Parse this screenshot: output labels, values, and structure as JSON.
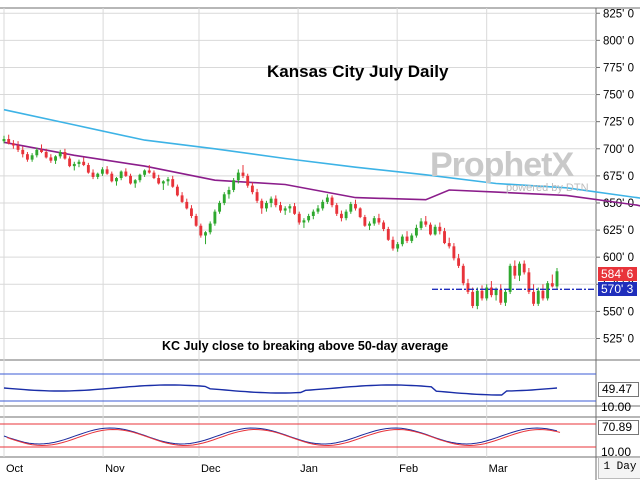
{
  "chart_data": {
    "type": "candlestick",
    "title": "Kansas City July Daily",
    "annotation": "KC July close to breaking above 50-day average",
    "y_ticks": [
      "825' 0",
      "800' 0",
      "775' 0",
      "750' 0",
      "725' 0",
      "700' 0",
      "675' 0",
      "650' 0",
      "625' 0",
      "600' 0",
      "575' 0",
      "550' 0",
      "525' 0"
    ],
    "y_tick_values": [
      825,
      800,
      775,
      750,
      725,
      700,
      675,
      650,
      625,
      600,
      575,
      550,
      525
    ],
    "ylim": [
      507,
      828
    ],
    "x_tick_labels": [
      "Oct",
      "Nov",
      "Dec",
      "Jan",
      "Feb",
      "Mar"
    ],
    "x_tick_dates": [
      "2020-10-01",
      "2020-11-01",
      "2020-12-01",
      "2021-01-01",
      "2021-02-01",
      "2021-03-01"
    ],
    "date_range": [
      "2020-10-01",
      "2021-03-23"
    ],
    "price_labels": [
      {
        "label": "584' 6",
        "value": 584.75,
        "color": "#e8333a"
      },
      {
        "label": "570' 3",
        "value": 570.375,
        "color": "#1f2ebc"
      }
    ],
    "reference_line": {
      "value": 570.375,
      "color": "#1f2ebc",
      "style": "dash-dot"
    },
    "series": [
      {
        "name": "50-day moving average",
        "color": "#3db3e6",
        "values": [
          [
            1,
            736
          ],
          [
            16,
            722
          ],
          [
            31,
            708
          ],
          [
            46,
            700
          ],
          [
            61,
            691
          ],
          [
            76,
            683
          ],
          [
            91,
            676
          ],
          [
            106,
            668
          ],
          [
            121,
            664
          ],
          [
            136,
            655
          ],
          [
            151,
            646
          ],
          [
            166,
            636
          ],
          [
            181,
            626
          ],
          [
            196,
            618
          ],
          [
            206,
            614
          ],
          [
            216,
            600
          ],
          [
            226,
            588
          ],
          [
            236,
            586
          ],
          [
            246,
            584
          ]
        ]
      },
      {
        "name": "20-day moving average",
        "color": "#8b1d8b",
        "values": [
          [
            1,
            706
          ],
          [
            16,
            694
          ],
          [
            31,
            684
          ],
          [
            46,
            671
          ],
          [
            61,
            667
          ],
          [
            76,
            655
          ],
          [
            91,
            653
          ],
          [
            96,
            662
          ],
          [
            106,
            660
          ],
          [
            121,
            657
          ],
          [
            136,
            648
          ],
          [
            151,
            634
          ],
          [
            166,
            630
          ],
          [
            181,
            622
          ],
          [
            196,
            606
          ],
          [
            206,
            591
          ],
          [
            216,
            572
          ],
          [
            226,
            565
          ],
          [
            236,
            568
          ],
          [
            246,
            572
          ]
        ]
      }
    ],
    "candles_ohlc": [
      [
        1,
        707,
        712,
        705,
        709
      ],
      [
        2,
        709,
        713,
        704,
        705
      ],
      [
        3,
        705,
        708,
        700,
        703
      ],
      [
        4,
        703,
        707,
        697,
        699
      ],
      [
        5,
        699,
        702,
        692,
        695
      ],
      [
        6,
        695,
        697,
        688,
        690
      ],
      [
        7,
        690,
        696,
        688,
        694
      ],
      [
        8,
        694,
        701,
        692,
        699
      ],
      [
        9,
        699,
        704,
        696,
        697
      ],
      [
        10,
        697,
        700,
        691,
        692
      ],
      [
        11,
        692,
        695,
        687,
        689
      ],
      [
        12,
        689,
        694,
        686,
        693
      ],
      [
        13,
        693,
        699,
        691,
        697
      ],
      [
        14,
        697,
        700,
        690,
        691
      ],
      [
        15,
        691,
        693,
        683,
        684
      ],
      [
        16,
        684,
        688,
        680,
        686
      ],
      [
        17,
        686,
        690,
        683,
        688
      ],
      [
        18,
        688,
        692,
        684,
        685
      ],
      [
        19,
        685,
        687,
        677,
        678
      ],
      [
        20,
        678,
        681,
        672,
        674
      ],
      [
        21,
        674,
        678,
        672,
        677
      ],
      [
        22,
        677,
        683,
        675,
        681
      ],
      [
        23,
        681,
        684,
        676,
        677
      ],
      [
        24,
        677,
        679,
        669,
        670
      ],
      [
        25,
        670,
        674,
        666,
        673
      ],
      [
        26,
        673,
        680,
        671,
        679
      ],
      [
        27,
        679,
        682,
        674,
        675
      ],
      [
        28,
        675,
        677,
        667,
        668
      ],
      [
        29,
        668,
        672,
        664,
        671
      ],
      [
        30,
        671,
        677,
        669,
        676
      ],
      [
        31,
        676,
        681,
        674,
        680
      ],
      [
        32,
        680,
        685,
        677,
        678
      ],
      [
        33,
        678,
        680,
        672,
        673
      ],
      [
        34,
        673,
        676,
        667,
        668
      ],
      [
        35,
        668,
        671,
        662,
        670
      ],
      [
        36,
        670,
        674,
        666,
        672
      ],
      [
        37,
        672,
        675,
        664,
        665
      ],
      [
        38,
        665,
        667,
        656,
        657
      ],
      [
        39,
        657,
        660,
        650,
        651
      ],
      [
        40,
        651,
        654,
        644,
        645
      ],
      [
        41,
        645,
        648,
        636,
        638
      ],
      [
        42,
        638,
        640,
        628,
        629
      ],
      [
        43,
        629,
        631,
        618,
        620
      ],
      [
        44,
        620,
        624,
        612,
        623
      ],
      [
        45,
        623,
        633,
        621,
        631
      ],
      [
        46,
        631,
        644,
        629,
        642
      ],
      [
        47,
        642,
        652,
        640,
        650
      ],
      [
        48,
        650,
        660,
        648,
        658
      ],
      [
        49,
        658,
        665,
        654,
        662
      ],
      [
        50,
        662,
        673,
        660,
        671
      ],
      [
        51,
        671,
        681,
        668,
        678
      ],
      [
        52,
        678,
        685,
        673,
        675
      ],
      [
        53,
        675,
        677,
        664,
        666
      ],
      [
        54,
        666,
        669,
        658,
        660
      ],
      [
        55,
        660,
        663,
        650,
        652
      ],
      [
        56,
        652,
        654,
        640,
        645
      ],
      [
        57,
        645,
        652,
        642,
        650
      ],
      [
        58,
        650,
        656,
        646,
        654
      ],
      [
        59,
        654,
        657,
        646,
        648
      ],
      [
        60,
        648,
        651,
        641,
        643
      ],
      [
        61,
        643,
        647,
        639,
        645
      ],
      [
        62,
        645,
        649,
        641,
        647
      ],
      [
        63,
        647,
        650,
        639,
        640
      ],
      [
        64,
        640,
        642,
        630,
        632
      ],
      [
        65,
        632,
        636,
        627,
        634
      ],
      [
        66,
        634,
        640,
        632,
        638
      ],
      [
        67,
        638,
        644,
        635,
        642
      ],
      [
        68,
        642,
        648,
        640,
        645
      ],
      [
        69,
        645,
        653,
        643,
        651
      ],
      [
        70,
        651,
        658,
        649,
        655
      ],
      [
        71,
        655,
        657,
        646,
        648
      ],
      [
        72,
        648,
        650,
        638,
        640
      ],
      [
        73,
        640,
        643,
        633,
        636
      ],
      [
        74,
        636,
        644,
        634,
        642
      ],
      [
        75,
        642,
        651,
        640,
        649
      ],
      [
        76,
        649,
        653,
        643,
        645
      ],
      [
        77,
        645,
        646,
        636,
        637
      ],
      [
        78,
        637,
        639,
        628,
        629
      ],
      [
        79,
        629,
        633,
        625,
        631
      ],
      [
        80,
        631,
        638,
        629,
        636
      ],
      [
        81,
        636,
        640,
        630,
        632
      ],
      [
        82,
        632,
        634,
        624,
        626
      ],
      [
        83,
        626,
        628,
        615,
        616
      ],
      [
        84,
        616,
        619,
        606,
        608
      ],
      [
        85,
        608,
        614,
        605,
        612
      ],
      [
        86,
        612,
        621,
        610,
        619
      ],
      [
        87,
        619,
        624,
        613,
        615
      ],
      [
        88,
        615,
        622,
        613,
        620
      ],
      [
        89,
        620,
        630,
        618,
        627
      ],
      [
        90,
        627,
        636,
        625,
        633
      ],
      [
        91,
        633,
        638,
        628,
        630
      ],
      [
        92,
        630,
        632,
        620,
        621
      ],
      [
        93,
        621,
        630,
        620,
        628
      ],
      [
        94,
        628,
        632,
        621,
        624
      ],
      [
        95,
        624,
        627,
        612,
        613
      ],
      [
        96,
        613,
        618,
        608,
        610
      ],
      [
        97,
        610,
        613,
        597,
        599
      ],
      [
        98,
        599,
        603,
        590,
        592
      ],
      [
        99,
        592,
        594,
        574,
        576
      ],
      [
        100,
        576,
        580,
        566,
        568
      ],
      [
        101,
        568,
        572,
        553,
        555
      ],
      [
        102,
        555,
        572,
        552,
        569
      ],
      [
        103,
        569,
        574,
        560,
        562
      ],
      [
        104,
        562,
        575,
        560,
        572
      ],
      [
        105,
        572,
        578,
        563,
        565
      ],
      [
        106,
        565,
        572,
        560,
        570
      ],
      [
        107,
        570,
        575,
        556,
        558
      ],
      [
        108,
        558,
        570,
        555,
        568
      ],
      [
        109,
        568,
        594,
        566,
        592
      ],
      [
        110,
        592,
        597,
        580,
        583
      ],
      [
        111,
        583,
        596,
        578,
        594
      ],
      [
        112,
        594,
        597,
        584,
        586
      ],
      [
        113,
        586,
        590,
        566,
        568
      ],
      [
        114,
        568,
        575,
        555,
        557
      ],
      [
        115,
        557,
        572,
        555,
        569
      ],
      [
        116,
        569,
        575,
        560,
        562
      ],
      [
        117,
        562,
        578,
        560,
        576
      ],
      [
        118,
        576,
        584,
        572,
        573
      ],
      [
        119,
        573,
        590,
        570,
        587
      ]
    ],
    "candles_date_range": [
      "2020-10-01",
      "2021-03-23"
    ],
    "rsi_indicator": {
      "last_label": "49.47",
      "levels": [
        "10.00"
      ]
    },
    "stochastic_indicator": {
      "last_label": "70.89",
      "levels": [
        "10.00"
      ]
    },
    "timeframe": "1 Day"
  },
  "colors": {
    "up": "#2ea82e",
    "down": "#e8333a",
    "frame": "#6f6f6f",
    "grid": "#d9d9d9"
  },
  "branding": {
    "logo": "ProphetX",
    "sub": "powered by DTN"
  }
}
